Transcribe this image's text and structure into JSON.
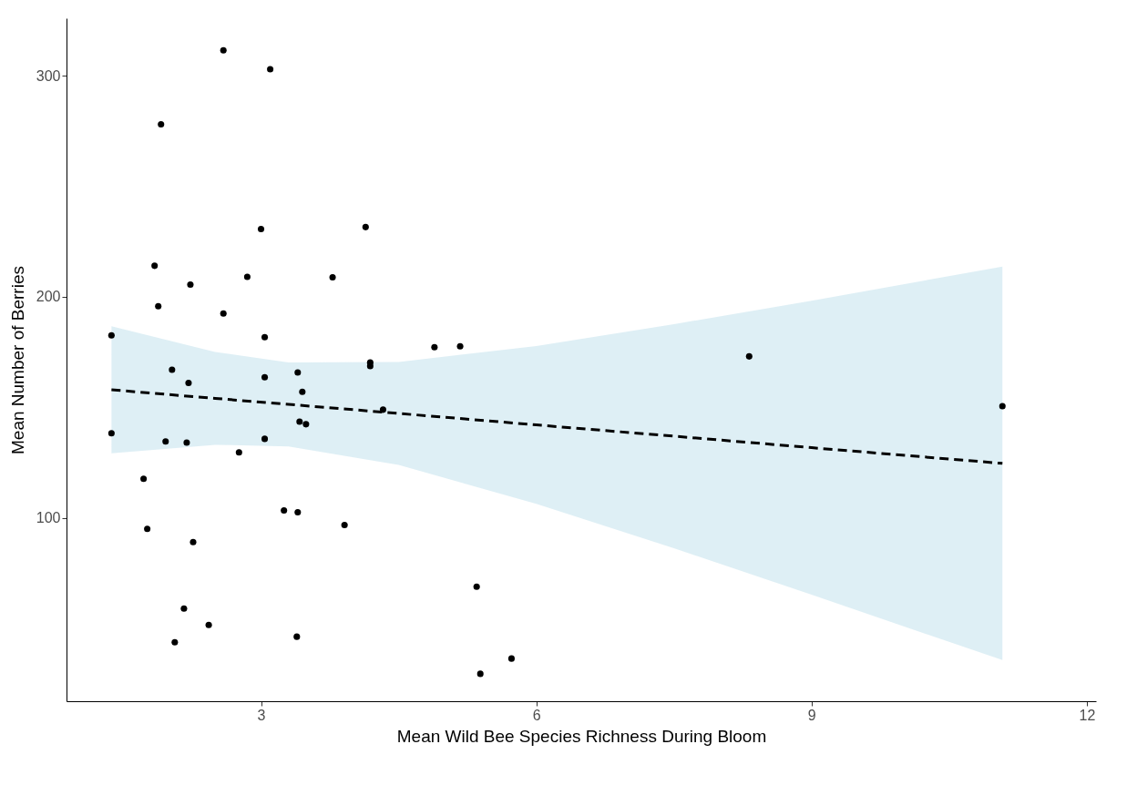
{
  "chart_data": {
    "type": "scatter",
    "xlabel": "Mean Wild Bee Species Richness During Bloom",
    "ylabel": "Mean Number of Berries",
    "xlim": [
      0.88,
      12.1
    ],
    "ylim": [
      17,
      326
    ],
    "xticks": [
      3,
      6,
      9,
      12
    ],
    "yticks": [
      100,
      200,
      300
    ],
    "grid": false,
    "marker": "circle",
    "series": [
      {
        "color": "#000000",
        "x": [
          1.37,
          1.37,
          1.72,
          1.76,
          1.84,
          1.91,
          1.88,
          2.03,
          1.96,
          2.06,
          2.16,
          2.19,
          2.21,
          2.23,
          2.26,
          2.43,
          2.59,
          2.59,
          2.76,
          2.85,
          3.0,
          3.04,
          3.04,
          3.04,
          3.1,
          3.25,
          3.4,
          3.4,
          3.39,
          3.45,
          3.42,
          3.49,
          3.78,
          3.91,
          4.14,
          4.19,
          4.19,
          4.33,
          4.89,
          5.17,
          5.35,
          5.39,
          5.73,
          8.32,
          11.08
        ],
        "values": [
          182.5,
          138.2,
          117.6,
          95,
          214,
          278,
          195.7,
          167,
          134.5,
          43.7,
          58.9,
          134,
          161,
          205.5,
          89,
          51.5,
          311.5,
          192.4,
          129.6,
          209,
          230.6,
          181.7,
          163.6,
          135.7,
          302.9,
          103.3,
          165.7,
          102.5,
          46.2,
          157,
          143.5,
          142.3,
          208.8,
          96.7,
          231.5,
          170.2,
          168.6,
          148.9,
          177.2,
          177.6,
          68.8,
          29.4,
          36.3,
          173,
          150.5
        ]
      },
      {
        "type": "line",
        "color": "#000000",
        "line_style": "dashed",
        "marker": "none",
        "x": [
          1.37,
          2.5,
          3.3,
          4.5,
          6,
          7.5,
          9,
          11.08
        ],
        "values": [
          157.9,
          154.0,
          151.3,
          147.2,
          142.0,
          136.9,
          131.7,
          124.6
        ],
        "lower": [
          129.2,
          133,
          132.3,
          123.9,
          106.3,
          86.2,
          65.2,
          35.6
        ],
        "upper": [
          186.6,
          175,
          170.3,
          170.5,
          177.7,
          187.6,
          198.2,
          213.6
        ]
      }
    ]
  }
}
